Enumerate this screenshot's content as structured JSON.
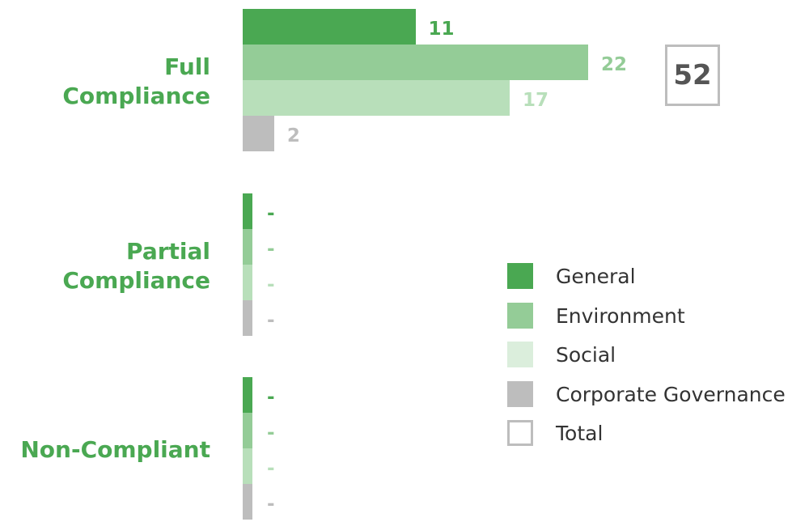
{
  "chart_data": {
    "type": "bar",
    "orientation": "horizontal",
    "categories": [
      "Full\nCompliance",
      "Partial\nCompliance",
      "Non-Compliant"
    ],
    "series": [
      {
        "name": "General",
        "color": "#4aa852",
        "values": [
          11,
          null,
          null
        ],
        "labels": [
          "11",
          "-",
          "-"
        ]
      },
      {
        "name": "Environment",
        "color": "#94cc97",
        "values": [
          22,
          null,
          null
        ],
        "labels": [
          "22",
          "-",
          "-"
        ]
      },
      {
        "name": "Social",
        "color": "#b8dfba",
        "values": [
          17,
          null,
          null
        ],
        "labels": [
          "17",
          "-",
          "-"
        ]
      },
      {
        "name": "Corporate Governance",
        "color": "#bdbdbd",
        "values": [
          2,
          null,
          null
        ],
        "labels": [
          "2",
          "-",
          "-"
        ]
      }
    ],
    "totals": [
      "52"
    ],
    "legend": [
      "General",
      "Environment",
      "Social",
      "Corporate Governance",
      "Total"
    ],
    "legend_position": "right",
    "grid": false,
    "xlim": [
      0,
      22
    ]
  },
  "colors": {
    "category_label": "#4aa852",
    "label_General": "#4aa852",
    "label_Environment": "#94cc97",
    "label_Social": "#b8dfba",
    "label_Corporate Governance": "#bdbdbd",
    "legend_Social": "#dbeedc",
    "total_border": "#bdbdbd",
    "total_text": "#555555"
  }
}
